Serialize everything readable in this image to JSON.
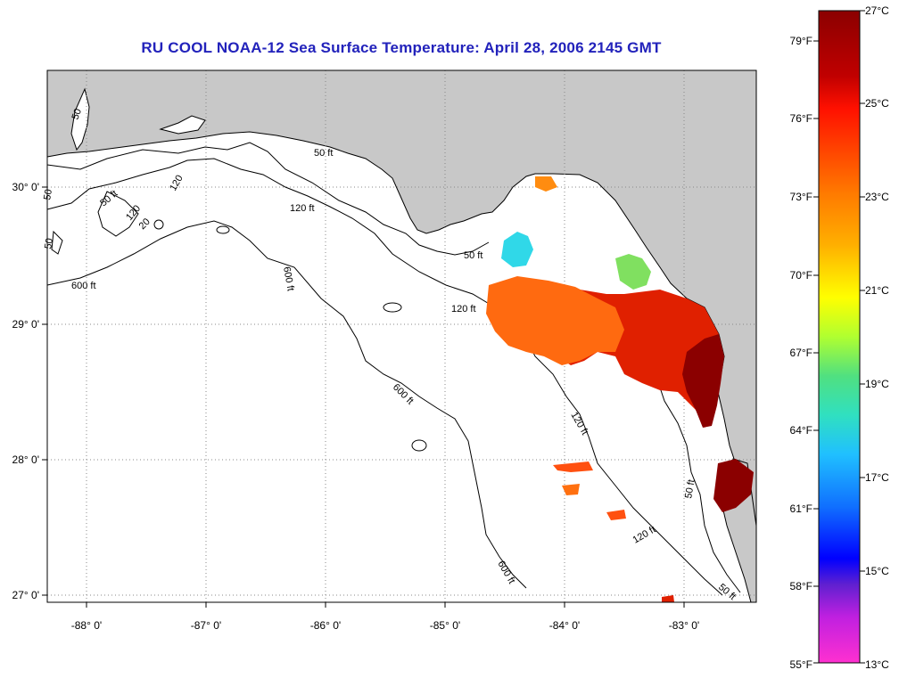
{
  "title": "RU COOL  NOAA-12  Sea Surface Temperature:  April 28, 2006 2145 GMT",
  "longitude_labels": [
    "-88° 0'",
    "-87° 0'",
    "-86° 0'",
    "-85° 0'",
    "-84° 0'",
    "-83° 0'"
  ],
  "latitude_labels": [
    "30° 0'",
    "29° 0'",
    "28° 0'",
    "27° 0'"
  ],
  "contour_labels": [
    "50 ft",
    "120 ft",
    "600 ft",
    "50 ft",
    "120 ft",
    "600 ft",
    "600 ft",
    "120 ft",
    "120 ft",
    "50 ft",
    "600 ft",
    "50",
    "50",
    "50",
    "120",
    "120",
    "20",
    "50 ft",
    "50 ft"
  ],
  "colorbar": {
    "fahrenheit_labels": [
      "79°F",
      "76°F",
      "73°F",
      "70°F",
      "67°F",
      "64°F",
      "61°F",
      "58°F",
      "55°F"
    ],
    "celsius_labels": [
      "27°C",
      "25°C",
      "23°C",
      "21°C",
      "19°C",
      "17°C",
      "15°C",
      "13°C"
    ]
  },
  "colors": {
    "land": "#c8c8c8",
    "title": "#2222bb",
    "sst_warm": "#8b0000",
    "sst_red": "#e02000",
    "sst_orange": "#ff6a10",
    "sst_cyan": "#30d8e8",
    "sst_green": "#80e060"
  }
}
